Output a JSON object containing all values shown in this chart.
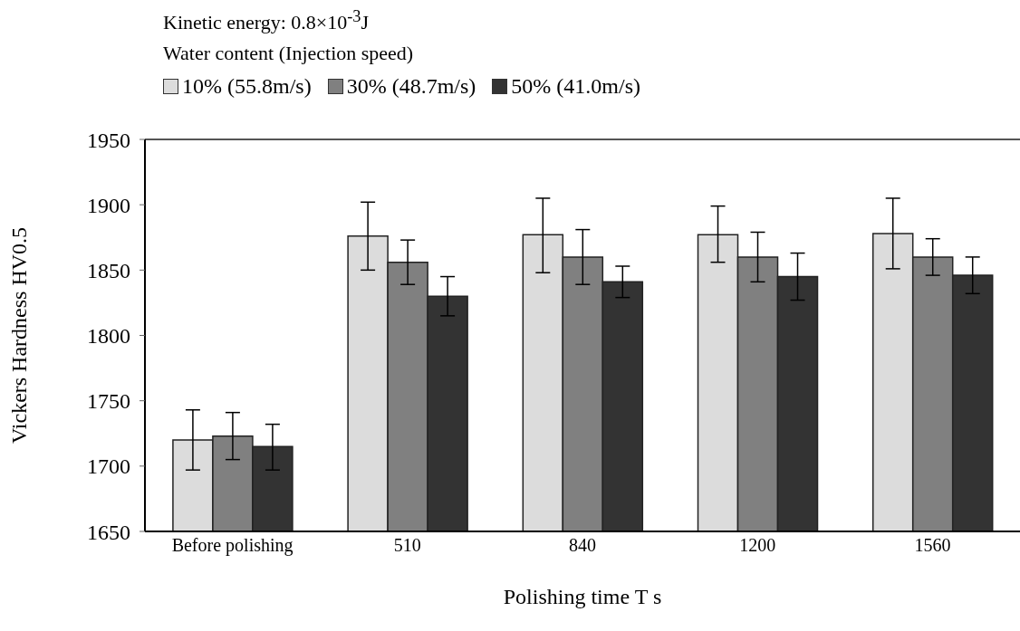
{
  "chart_data": {
    "type": "bar",
    "title": "Kinetic energy: 0.8×10$^{-3}$J",
    "legend_title": "Water content (Injection speed)",
    "xlabel": "Polishing time T s",
    "ylabel": "Vickers Hardness HV0.5",
    "categories": [
      "Before polishing",
      "510",
      "840",
      "1200",
      "1560"
    ],
    "series": [
      {
        "name": "10% (55.8m/s)",
        "color": "#dcdcdc",
        "values": [
          1720,
          1876,
          1877,
          1877,
          1878
        ],
        "errors": [
          [
            1697,
            1743
          ],
          [
            1850,
            1902
          ],
          [
            1848,
            1905
          ],
          [
            1856,
            1899
          ],
          [
            1851,
            1905
          ]
        ]
      },
      {
        "name": "30% (48.7m/s)",
        "color": "#808080",
        "values": [
          1723,
          1856,
          1860,
          1860,
          1860
        ],
        "errors": [
          [
            1705,
            1741
          ],
          [
            1839,
            1873
          ],
          [
            1839,
            1881
          ],
          [
            1841,
            1879
          ],
          [
            1846,
            1874
          ]
        ]
      },
      {
        "name": "50% (41.0m/s)",
        "color": "#333333",
        "values": [
          1715,
          1830,
          1841,
          1845,
          1846
        ],
        "errors": [
          [
            1697,
            1732
          ],
          [
            1815,
            1845
          ],
          [
            1829,
            1853
          ],
          [
            1827,
            1863
          ],
          [
            1832,
            1860
          ]
        ]
      }
    ],
    "ylim": [
      1650,
      1950
    ],
    "yticks": [
      1650,
      1700,
      1750,
      1800,
      1850,
      1900,
      1950
    ],
    "grid": false,
    "legend": "top left"
  }
}
